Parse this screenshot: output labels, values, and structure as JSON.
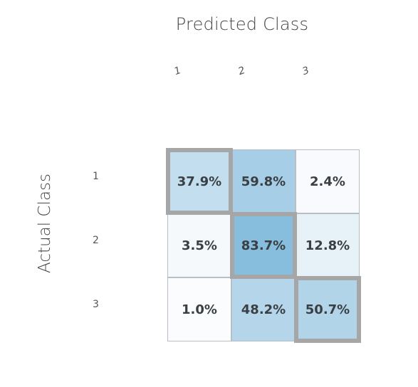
{
  "chart_data": {
    "type": "heatmap",
    "title": "Predicted Class",
    "xlabel": "Predicted Class",
    "ylabel": "Actual Class",
    "col_labels": [
      "1",
      "2",
      "3"
    ],
    "row_labels": [
      "1",
      "2",
      "3"
    ],
    "values": [
      [
        37.9,
        59.8,
        2.4
      ],
      [
        3.5,
        83.7,
        12.8
      ],
      [
        1.0,
        48.2,
        50.7
      ]
    ],
    "cell_text": [
      [
        "37.9%",
        "59.8%",
        "2.4%"
      ],
      [
        "3.5%",
        "83.7%",
        "12.8%"
      ],
      [
        "1.0%",
        "48.2%",
        "50.7%"
      ]
    ],
    "diagonal_highlight": true,
    "highlight_color": "#a6a6a6",
    "color_low": "#fdfdfe",
    "color_high": "#87bddd"
  }
}
